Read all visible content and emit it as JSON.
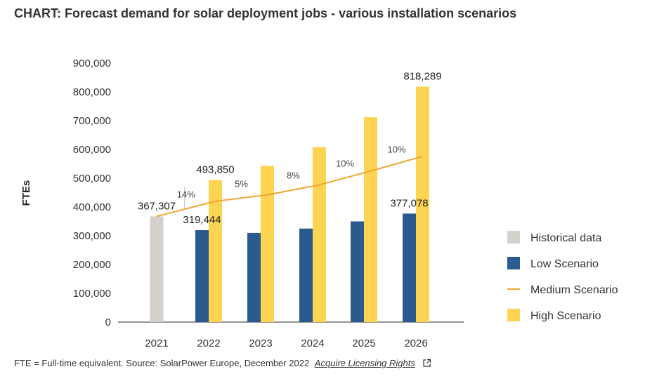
{
  "title": "CHART: Forecast demand for solar deployment jobs - various installation scenarios",
  "footer": {
    "source_text": "FTE = Full-time equivalent. Source: SolarPower Europe, December 2022",
    "link_text": "Acquire Licensing Rights"
  },
  "colors": {
    "historical": "#d4d0cc",
    "low": "#2b5a8f",
    "medium": "#f0a530",
    "high": "#fcd451",
    "axis": "#555555",
    "text": "#333333"
  },
  "icons": {
    "external_link": "external-link-icon"
  },
  "chart_data": {
    "type": "bar",
    "title": "",
    "xlabel": "",
    "ylabel": "FTEs",
    "ylim": [
      0,
      900000
    ],
    "yticks": [
      0,
      100000,
      200000,
      300000,
      400000,
      500000,
      600000,
      700000,
      800000,
      900000
    ],
    "ytick_labels": [
      "0",
      "100,000",
      "200,000",
      "300,000",
      "400,000",
      "500,000",
      "600,000",
      "700,000",
      "800,000",
      "900,000"
    ],
    "categories": [
      "2021",
      "2022",
      "2023",
      "2024",
      "2025",
      "2026"
    ],
    "series": [
      {
        "name": "Historical data",
        "kind": "bar",
        "values": [
          367307,
          null,
          null,
          null,
          null,
          null
        ]
      },
      {
        "name": "Low Scenario",
        "kind": "bar",
        "values": [
          null,
          319444,
          310000,
          325000,
          350000,
          377078
        ]
      },
      {
        "name": "Medium Scenario",
        "kind": "line",
        "values": [
          367307,
          420000,
          442000,
          477000,
          525000,
          576000
        ]
      },
      {
        "name": "High Scenario",
        "kind": "bar",
        "values": [
          null,
          493850,
          543000,
          608000,
          712000,
          818289
        ]
      }
    ],
    "value_labels": [
      {
        "category": "2021",
        "series": "Historical data",
        "text": "367,307"
      },
      {
        "category": "2022",
        "series": "Low Scenario",
        "text": "319,444"
      },
      {
        "category": "2022",
        "series": "High Scenario",
        "text": "493,850"
      },
      {
        "category": "2026",
        "series": "Low Scenario",
        "text": "377,078"
      },
      {
        "category": "2026",
        "series": "High Scenario",
        "text": "818,289"
      }
    ],
    "growth_labels": [
      {
        "between": [
          "2021",
          "2022"
        ],
        "text": "14%"
      },
      {
        "between": [
          "2022",
          "2023"
        ],
        "text": "5%"
      },
      {
        "between": [
          "2023",
          "2024"
        ],
        "text": "8%"
      },
      {
        "between": [
          "2024",
          "2025"
        ],
        "text": "10%"
      },
      {
        "between": [
          "2025",
          "2026"
        ],
        "text": "10%"
      }
    ],
    "grid": false,
    "legend_position": "right",
    "legend": [
      "Historical data",
      "Low Scenario",
      "Medium Scenario",
      "High Scenario"
    ]
  }
}
